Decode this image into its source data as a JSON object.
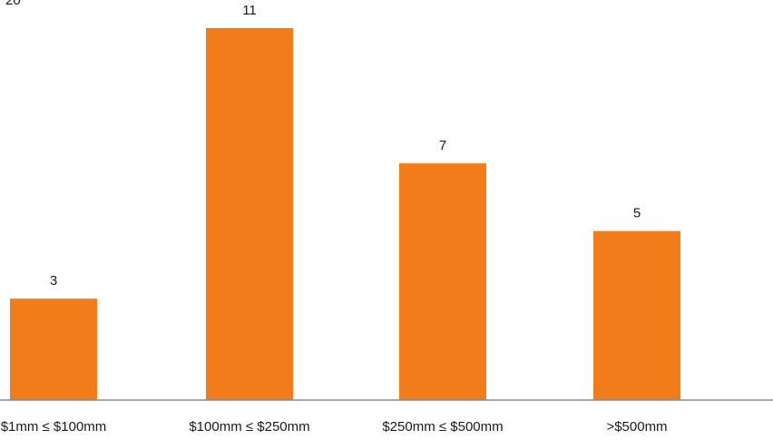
{
  "chart_data": {
    "type": "bar",
    "categories": [
      "$1mm ≤ $100mm",
      "$100mm ≤ $250mm",
      "$250mm ≤ $500mm",
      ">$500mm"
    ],
    "values": [
      3,
      11,
      7,
      5
    ],
    "value_labels": [
      "3",
      "11",
      "7",
      "5"
    ],
    "corner_label": "20",
    "bar_color": "#F27C1A",
    "axis_color": "#8C8C8C",
    "grid": false,
    "legend": "none"
  }
}
